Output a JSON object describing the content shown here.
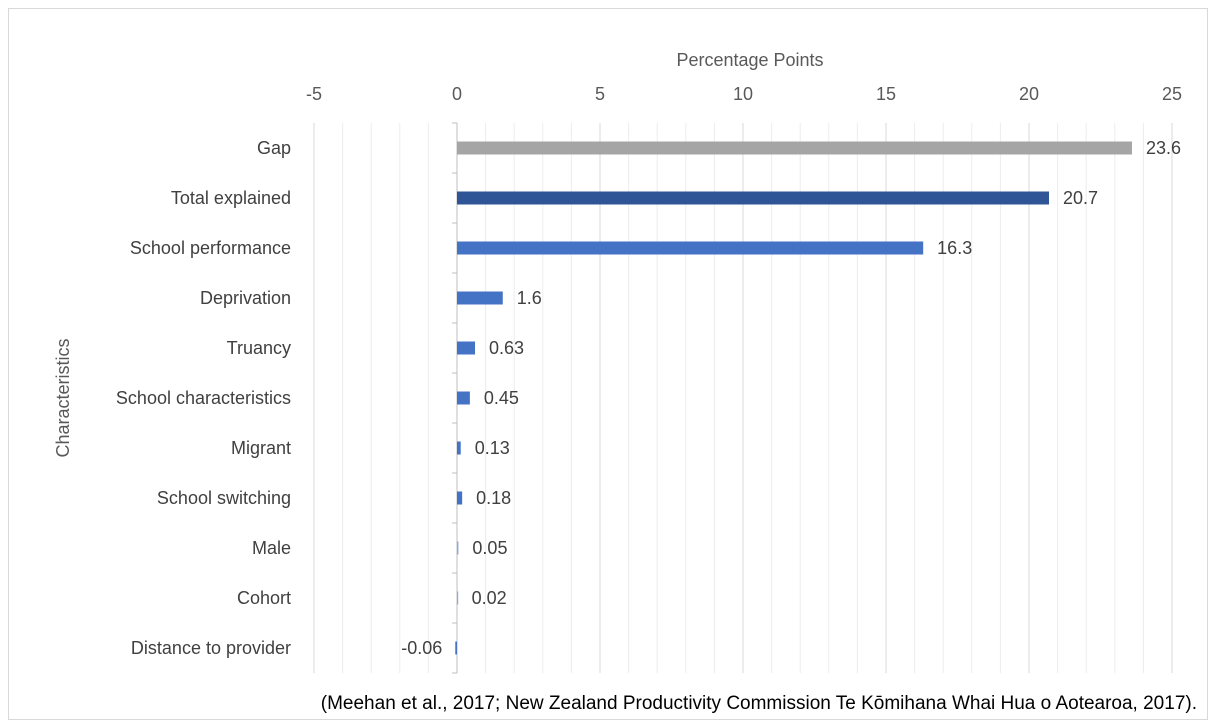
{
  "chart_data": {
    "type": "bar",
    "orientation": "horizontal",
    "categories": [
      "Gap",
      "Total explained",
      "School performance",
      "Deprivation",
      "Truancy ",
      "School characteristics",
      "Migrant",
      "School switching",
      "Male",
      "Cohort",
      "Distance to provider"
    ],
    "values": [
      23.6,
      20.7,
      16.3,
      1.6,
      0.63,
      0.45,
      0.13,
      0.18,
      0.05,
      0.02,
      -0.06
    ],
    "data_labels": [
      "23.6",
      "20.7",
      "16.3",
      "1.6",
      "0.63",
      "0.45",
      "0.13",
      "0.18",
      "0.05",
      "0.02",
      "-0.06"
    ],
    "bar_colors": [
      "#a5a5a5",
      "#2f5597",
      "#4472c4",
      "#4472c4",
      "#4472c4",
      "#4472c4",
      "#4472c4",
      "#4472c4",
      "#8faadc",
      "#8faadc",
      "#4472c4"
    ],
    "xlabel": "Percentage Points",
    "ylabel": "Characteristics",
    "xlim": [
      -5,
      25
    ],
    "xticks": [
      -5,
      0,
      5,
      10,
      15,
      20,
      25
    ],
    "xtick_labels": [
      "-5",
      "0",
      "5",
      "10",
      "15",
      "20",
      "25"
    ],
    "x_axis_position": "top",
    "grid": true,
    "legend": "none"
  },
  "source_note": "(Meehan et al., 2017; New Zealand Productivity Commission Te Kōmihana Whai Hua o Aotearoa, 2017)."
}
